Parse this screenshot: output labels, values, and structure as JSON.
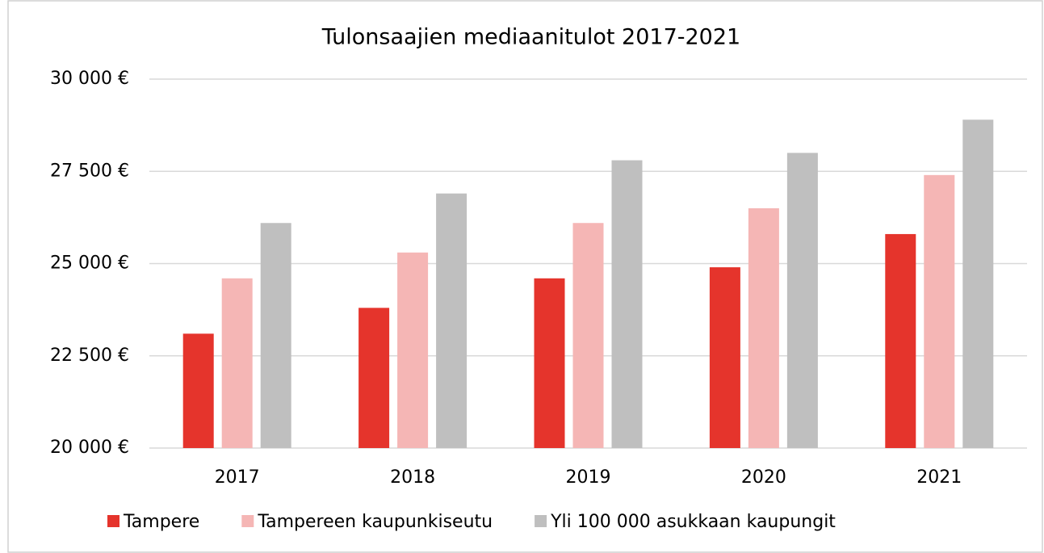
{
  "chart_data": {
    "type": "bar",
    "title": "Tulonsaajien mediaanitulot 2017-2021",
    "categories": [
      "2017",
      "2018",
      "2019",
      "2020",
      "2021"
    ],
    "series": [
      {
        "name": "Tampere",
        "color": "#e5342c",
        "values": [
          23100,
          23800,
          24600,
          24900,
          25800
        ]
      },
      {
        "name": "Tampereen kaupunkiseutu",
        "color": "#f5b6b5",
        "values": [
          24600,
          25300,
          26100,
          26500,
          27400
        ]
      },
      {
        "name": "Yli 100 000 asukkaan kaupungit",
        "color": "#bfbfbf",
        "values": [
          26100,
          26900,
          27800,
          28000,
          28900
        ]
      }
    ],
    "ylim": [
      20000,
      30000
    ],
    "yticks": [
      {
        "value": 20000,
        "label": "20 000 €"
      },
      {
        "value": 22500,
        "label": "22 500 €"
      },
      {
        "value": 25000,
        "label": "25 000 €"
      },
      {
        "value": 27500,
        "label": "27 500 €"
      },
      {
        "value": 30000,
        "label": "30 000 €"
      }
    ],
    "grid": true,
    "legend": "bottom"
  }
}
